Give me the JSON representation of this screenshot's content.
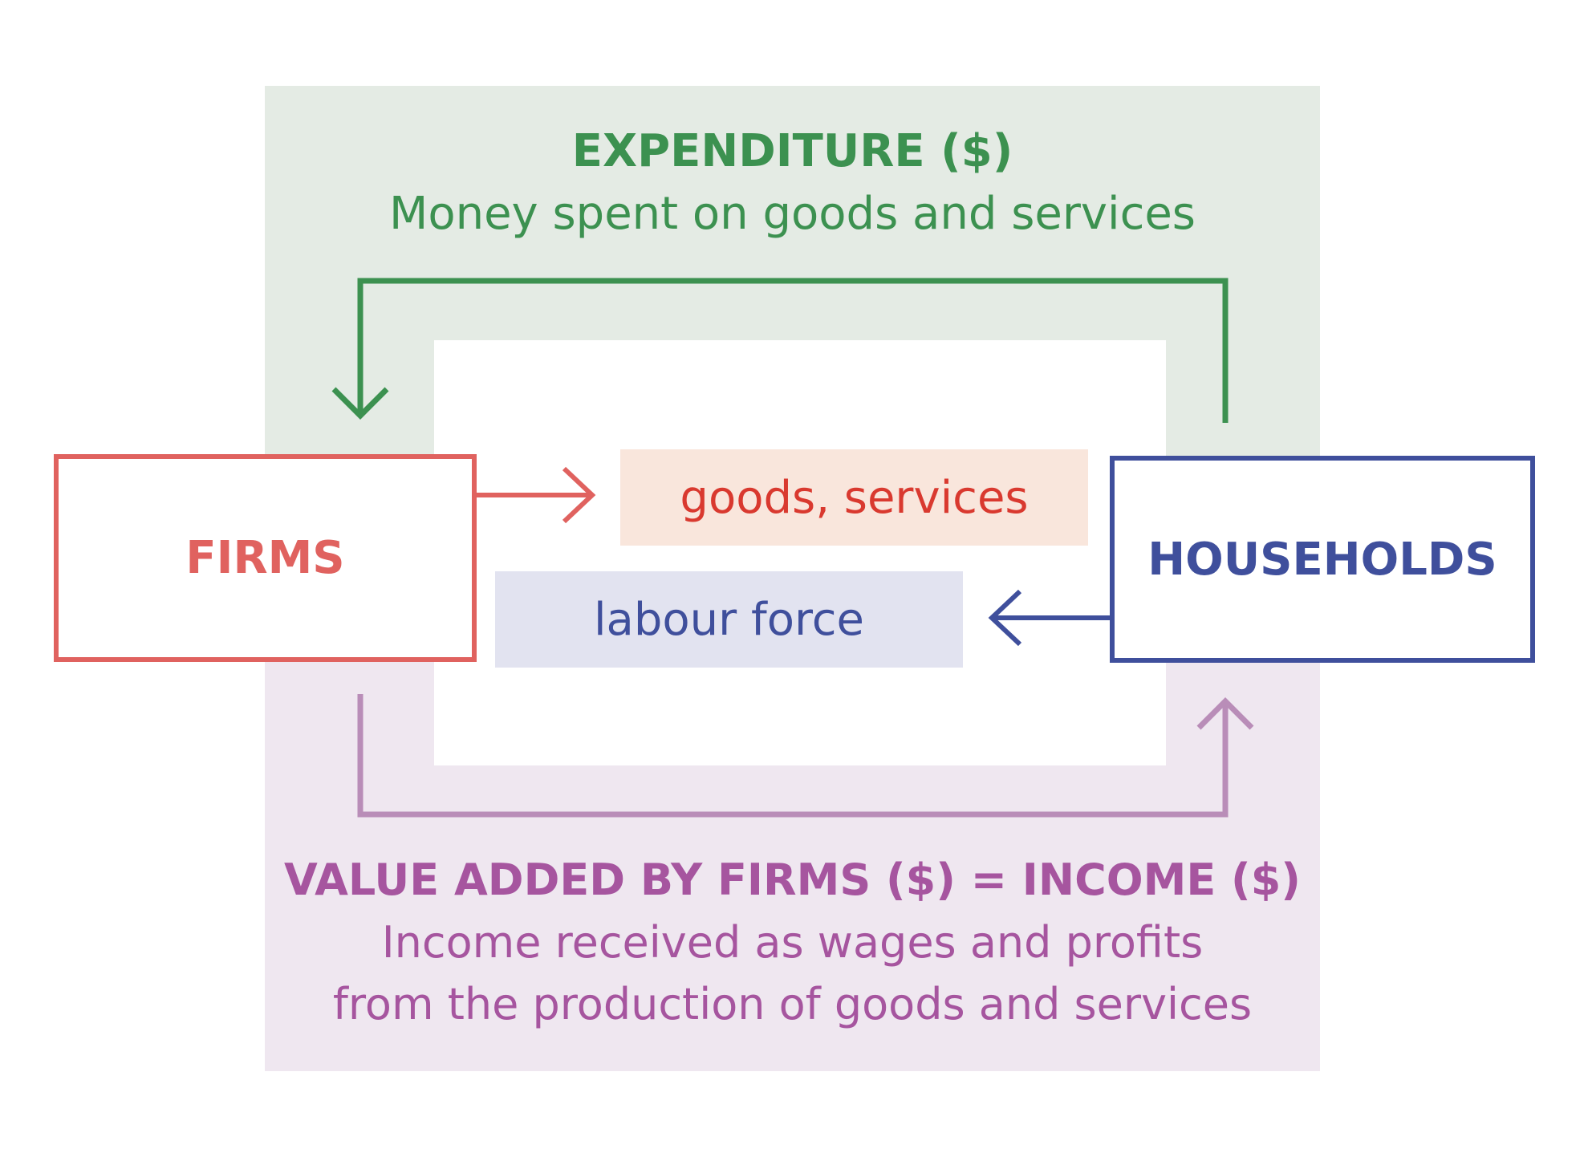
{
  "colors": {
    "expenditure": "#3c9150",
    "income": "#a6559f",
    "income_arrow": "#b98db8",
    "firms": "#e0625f",
    "households": "#3f4f9c",
    "goods_text": "#d9392f",
    "expenditure_band": "#e4ebe4",
    "income_band": "#efe7f0",
    "goods_tag_bg": "#f9e6dc",
    "labour_tag_bg": "#e2e3f0"
  },
  "expenditure": {
    "title": "EXPENDITURE ($)",
    "subtitle": "Money spent on goods and services"
  },
  "income": {
    "title": "VALUE ADDED BY FIRMS ($) = INCOME ($)",
    "subtitle_line1": "Income received as wages and profits",
    "subtitle_line2": "from the production of goods and services"
  },
  "entities": {
    "firms": "FIRMS",
    "households": "HOUSEHOLDS"
  },
  "flows": {
    "goods": "goods, services",
    "labour": "labour force"
  }
}
